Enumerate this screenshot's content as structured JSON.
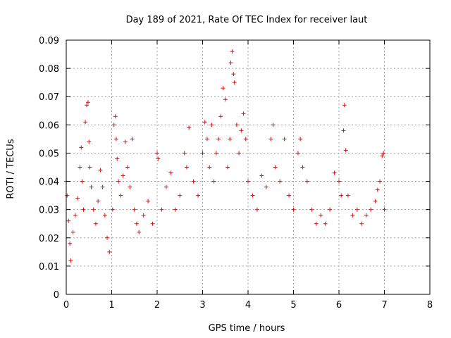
{
  "chart_data": {
    "type": "scatter",
    "title": "Day 189 of 2021, Rate Of TEC Index for receiver laut",
    "xlabel": "GPS time / hours",
    "ylabel": "ROTI / TECUs",
    "xlim": [
      0,
      8
    ],
    "ylim": [
      0,
      0.09
    ],
    "x_ticks": [
      0,
      1,
      2,
      3,
      4,
      5,
      6,
      7,
      8
    ],
    "x_tick_labels": [
      "0",
      "1",
      "2",
      "3",
      "4",
      "5",
      "6",
      "7",
      "8"
    ],
    "y_ticks": [
      0,
      0.01,
      0.02,
      0.03,
      0.04,
      0.05,
      0.06,
      0.07,
      0.08,
      0.09
    ],
    "y_tick_labels": [
      "0",
      "0.01",
      "0.02",
      "0.03",
      "0.04",
      "0.05",
      "0.06",
      "0.07",
      "0.08",
      "0.09"
    ],
    "grid": true,
    "marker": "+",
    "series": [
      {
        "name": "ROTI",
        "color": "#ff0000",
        "points": [
          [
            0.0,
            0.04
          ],
          [
            0.02,
            0.035
          ],
          [
            0.05,
            0.026
          ],
          [
            0.08,
            0.018
          ],
          [
            0.1,
            0.012
          ],
          [
            0.15,
            0.022
          ],
          [
            0.2,
            0.028
          ],
          [
            0.25,
            0.034
          ],
          [
            0.3,
            0.045
          ],
          [
            0.33,
            0.052
          ],
          [
            0.35,
            0.04
          ],
          [
            0.38,
            0.03
          ],
          [
            0.42,
            0.061
          ],
          [
            0.45,
            0.067
          ],
          [
            0.48,
            0.068
          ],
          [
            0.5,
            0.054
          ],
          [
            0.52,
            0.045
          ],
          [
            0.55,
            0.038
          ],
          [
            0.6,
            0.03
          ],
          [
            0.65,
            0.025
          ],
          [
            0.7,
            0.033
          ],
          [
            0.75,
            0.044
          ],
          [
            0.8,
            0.038
          ],
          [
            0.85,
            0.028
          ],
          [
            0.9,
            0.02
          ],
          [
            0.95,
            0.015
          ],
          [
            1.02,
            0.03
          ],
          [
            1.05,
            0.06
          ],
          [
            1.08,
            0.063
          ],
          [
            1.1,
            0.055
          ],
          [
            1.12,
            0.048
          ],
          [
            1.15,
            0.04
          ],
          [
            1.2,
            0.035
          ],
          [
            1.25,
            0.042
          ],
          [
            1.3,
            0.054
          ],
          [
            1.35,
            0.045
          ],
          [
            1.4,
            0.038
          ],
          [
            1.45,
            0.055
          ],
          [
            1.5,
            0.03
          ],
          [
            1.55,
            0.025
          ],
          [
            1.6,
            0.022
          ],
          [
            1.7,
            0.028
          ],
          [
            1.8,
            0.033
          ],
          [
            1.9,
            0.025
          ],
          [
            2.0,
            0.05
          ],
          [
            2.02,
            0.048
          ],
          [
            2.1,
            0.03
          ],
          [
            2.2,
            0.038
          ],
          [
            2.3,
            0.043
          ],
          [
            2.4,
            0.03
          ],
          [
            2.5,
            0.035
          ],
          [
            2.6,
            0.05
          ],
          [
            2.65,
            0.045
          ],
          [
            2.7,
            0.059
          ],
          [
            2.8,
            0.04
          ],
          [
            2.9,
            0.035
          ],
          [
            3.0,
            0.05
          ],
          [
            3.05,
            0.061
          ],
          [
            3.1,
            0.055
          ],
          [
            3.15,
            0.045
          ],
          [
            3.2,
            0.06
          ],
          [
            3.25,
            0.04
          ],
          [
            3.3,
            0.05
          ],
          [
            3.35,
            0.055
          ],
          [
            3.4,
            0.063
          ],
          [
            3.45,
            0.073
          ],
          [
            3.5,
            0.069
          ],
          [
            3.55,
            0.045
          ],
          [
            3.6,
            0.055
          ],
          [
            3.62,
            0.082
          ],
          [
            3.65,
            0.086
          ],
          [
            3.68,
            0.078
          ],
          [
            3.7,
            0.075
          ],
          [
            3.75,
            0.06
          ],
          [
            3.8,
            0.05
          ],
          [
            3.85,
            0.058
          ],
          [
            3.9,
            0.064
          ],
          [
            3.95,
            0.055
          ],
          [
            4.0,
            0.04
          ],
          [
            4.1,
            0.035
          ],
          [
            4.2,
            0.03
          ],
          [
            4.3,
            0.042
          ],
          [
            4.4,
            0.038
          ],
          [
            4.5,
            0.055
          ],
          [
            4.55,
            0.06
          ],
          [
            4.6,
            0.045
          ],
          [
            4.7,
            0.04
          ],
          [
            4.8,
            0.055
          ],
          [
            4.9,
            0.035
          ],
          [
            5.0,
            0.03
          ],
          [
            5.1,
            0.05
          ],
          [
            5.15,
            0.055
          ],
          [
            5.2,
            0.045
          ],
          [
            5.3,
            0.04
          ],
          [
            5.4,
            0.03
          ],
          [
            5.5,
            0.025
          ],
          [
            5.6,
            0.028
          ],
          [
            5.7,
            0.025
          ],
          [
            5.8,
            0.03
          ],
          [
            5.9,
            0.043
          ],
          [
            6.0,
            0.04
          ],
          [
            6.05,
            0.035
          ],
          [
            6.1,
            0.058
          ],
          [
            6.12,
            0.067
          ],
          [
            6.15,
            0.051
          ],
          [
            6.2,
            0.035
          ],
          [
            6.3,
            0.028
          ],
          [
            6.4,
            0.03
          ],
          [
            6.5,
            0.025
          ],
          [
            6.6,
            0.028
          ],
          [
            6.7,
            0.03
          ],
          [
            6.8,
            0.033
          ],
          [
            6.85,
            0.037
          ],
          [
            6.9,
            0.04
          ],
          [
            6.95,
            0.049
          ],
          [
            6.98,
            0.05
          ],
          [
            7.0,
            0.03
          ]
        ]
      }
    ]
  }
}
